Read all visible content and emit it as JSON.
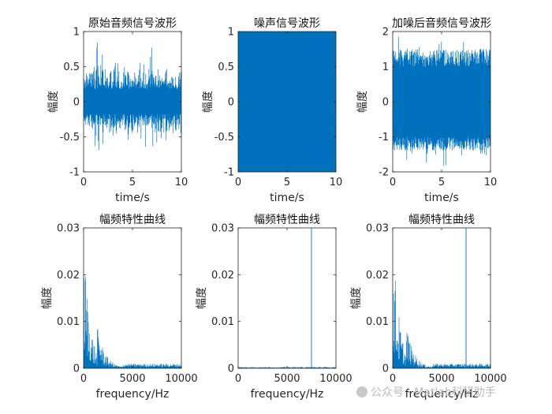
{
  "chart_data": [
    {
      "type": "line",
      "title": "原始音频信号波形",
      "xlabel": "time/s",
      "ylabel": "幅度",
      "xlim": [
        0,
        10
      ],
      "ylim": [
        -1,
        1
      ],
      "xticks": [
        0,
        5,
        10
      ],
      "xtick_labels": [
        "0",
        "5",
        "10"
      ],
      "yticks": [
        -1,
        -0.5,
        0,
        0.5,
        1
      ],
      "ytick_labels": [
        "-1",
        "-0.5",
        "0",
        "0.5",
        "1"
      ],
      "grid": false,
      "color": "#0072bd",
      "series": [
        {
          "x_range": [
            0,
            10
          ],
          "envelope": {
            "typical": [
              -0.4,
              0.5
            ],
            "extreme": [
              -0.95,
              0.95
            ]
          }
        }
      ]
    },
    {
      "type": "line",
      "title": "噪声信号波形",
      "xlabel": "time/s",
      "ylabel": "幅度",
      "xlim": [
        0,
        10
      ],
      "ylim": [
        -1,
        1
      ],
      "xticks": [
        0,
        5,
        10
      ],
      "xtick_labels": [
        "0",
        "5",
        "10"
      ],
      "yticks": [
        -1,
        -0.5,
        0,
        0.5,
        1
      ],
      "ytick_labels": [
        "-1",
        "-0.5",
        "0",
        "0.5",
        "1"
      ],
      "grid": false,
      "color": "#0072bd",
      "series": [
        {
          "x_range": [
            0,
            10
          ],
          "envelope": {
            "typical": [
              -1,
              1
            ],
            "extreme": [
              -1,
              1
            ]
          }
        }
      ]
    },
    {
      "type": "line",
      "title": "加噪后音频信号波形",
      "xlabel": "time/s",
      "ylabel": "幅度",
      "xlim": [
        0,
        10
      ],
      "ylim": [
        -2,
        2
      ],
      "xticks": [
        0,
        5,
        10
      ],
      "xtick_labels": [
        "0",
        "5",
        "10"
      ],
      "yticks": [
        -2,
        -1,
        0,
        1,
        2
      ],
      "ytick_labels": [
        "-2",
        "-1",
        "0",
        "1",
        "2"
      ],
      "grid": false,
      "color": "#0072bd",
      "series": [
        {
          "x_range": [
            0,
            10
          ],
          "envelope": {
            "upper": [
              1,
              1.5
            ],
            "lower": [
              -1.4,
              -1
            ],
            "extreme": [
              -1.9,
              1.9
            ]
          }
        }
      ]
    },
    {
      "type": "line",
      "title": "幅频特性曲线",
      "xlabel": "frequency/Hz",
      "ylabel": "幅度",
      "xlim": [
        0,
        10000
      ],
      "ylim": [
        0,
        0.03
      ],
      "xticks": [
        0,
        5000,
        10000
      ],
      "xtick_labels": [
        "0",
        "5000",
        "10000"
      ],
      "yticks": [
        0,
        0.01,
        0.02,
        0.03
      ],
      "ytick_labels": [
        "0",
        "0.01",
        "0.02",
        "0.03"
      ],
      "grid": false,
      "color": "#0072bd",
      "series": [
        {
          "spectrum": {
            "peak": 0.0225,
            "peak_freq": 200,
            "decay_freq": 1400,
            "tail_freq": 4000,
            "tail_level": 0.0008
          }
        }
      ]
    },
    {
      "type": "line",
      "title": "幅频特性曲线",
      "xlabel": "frequency/Hz",
      "ylabel": "幅度",
      "xlim": [
        0,
        10000
      ],
      "ylim": [
        0,
        0.03
      ],
      "xticks": [
        0,
        5000,
        10000
      ],
      "xtick_labels": [
        "0",
        "5000",
        "10000"
      ],
      "yticks": [
        0,
        0.01,
        0.02,
        0.03
      ],
      "ytick_labels": [
        "0",
        "0.01",
        "0.02",
        "0.03"
      ],
      "grid": false,
      "color": "#0072bd",
      "series": [
        {
          "spectrum": {
            "floor": 0.0002,
            "spike_freq": 7500,
            "spike_value": 0.03
          }
        }
      ]
    },
    {
      "type": "line",
      "title": "幅频特性曲线",
      "xlabel": "frequency/Hz",
      "ylabel": "幅度",
      "xlim": [
        0,
        10000
      ],
      "ylim": [
        0,
        0.03
      ],
      "xticks": [
        0,
        5000,
        10000
      ],
      "xtick_labels": [
        "0",
        "5000",
        "10000"
      ],
      "yticks": [
        0,
        0.01,
        0.02,
        0.03
      ],
      "ytick_labels": [
        "0",
        "0.01",
        "0.02",
        "0.03"
      ],
      "grid": false,
      "color": "#0072bd",
      "series": [
        {
          "spectrum": {
            "peak": 0.0225,
            "peak_freq": 200,
            "decay_freq": 1400,
            "tail_freq": 4000,
            "tail_level": 0.0008,
            "spike_freq": 7500,
            "spike_value": 0.03
          }
        }
      ]
    }
  ],
  "watermark": "公众号 · Matlab科研助手"
}
